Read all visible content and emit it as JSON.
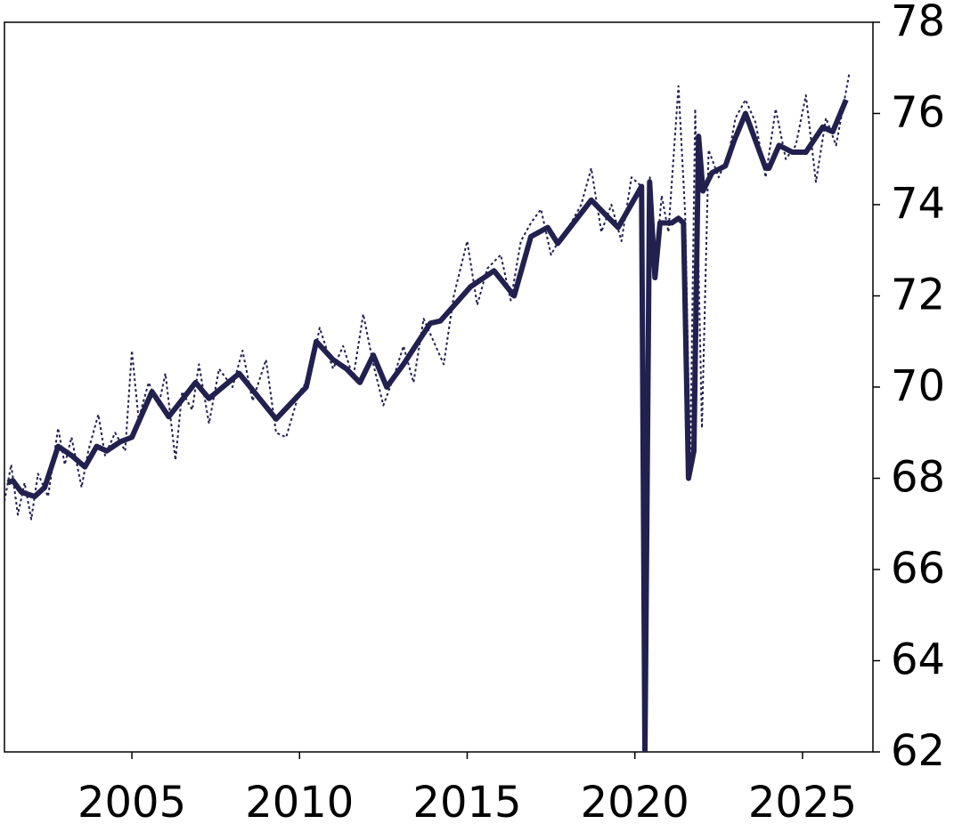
{
  "chart_data": {
    "type": "line",
    "xlim": [
      2001.2,
      2027.1
    ],
    "ylim": [
      62,
      78
    ],
    "xticks": [
      2005,
      2010,
      2015,
      2020,
      2025
    ],
    "yticks": [
      62,
      64,
      66,
      68,
      70,
      72,
      74,
      76,
      78
    ],
    "y_axis_side": "right",
    "series": [
      {
        "color": "#22204f",
        "linestyle": "dotted",
        "width": 2,
        "x": [
          2001.2,
          2001.4,
          2001.6,
          2001.8,
          2002.0,
          2002.2,
          2002.5,
          2002.8,
          2003.0,
          2003.2,
          2003.5,
          2003.7,
          2004.0,
          2004.2,
          2004.5,
          2004.8,
          2005.0,
          2005.2,
          2005.5,
          2005.8,
          2006.0,
          2006.3,
          2006.5,
          2006.8,
          2007.0,
          2007.3,
          2007.6,
          2008.0,
          2008.3,
          2008.6,
          2009.0,
          2009.3,
          2009.6,
          2010.0,
          2010.3,
          2010.6,
          2011.0,
          2011.3,
          2011.6,
          2011.9,
          2012.2,
          2012.5,
          2012.8,
          2013.1,
          2013.4,
          2013.7,
          2014.0,
          2014.3,
          2014.6,
          2015.0,
          2015.3,
          2015.6,
          2016.0,
          2016.3,
          2016.6,
          2016.9,
          2017.2,
          2017.5,
          2017.8,
          2018.1,
          2018.4,
          2018.7,
          2019.0,
          2019.3,
          2019.6,
          2019.9,
          2020.2,
          2020.3,
          2020.45,
          2020.6,
          2020.8,
          2021.0,
          2021.3,
          2021.5,
          2021.65,
          2021.8,
          2022.0,
          2022.2,
          2022.5,
          2022.8,
          2023.0,
          2023.3,
          2023.6,
          2023.9,
          2024.2,
          2024.5,
          2024.8,
          2025.1,
          2025.4,
          2025.7,
          2026.0,
          2026.4
        ],
        "values": [
          67.5,
          68.3,
          67.2,
          67.9,
          67.1,
          68.1,
          67.6,
          69.1,
          68.3,
          68.9,
          67.8,
          68.6,
          69.4,
          68.5,
          69.0,
          68.6,
          70.8,
          69.3,
          70.1,
          69.6,
          70.3,
          68.4,
          69.9,
          69.5,
          70.5,
          69.2,
          70.4,
          70.0,
          70.8,
          69.7,
          70.6,
          69.0,
          68.9,
          69.9,
          70.2,
          71.3,
          70.4,
          70.9,
          70.2,
          71.6,
          70.5,
          69.6,
          70.2,
          70.9,
          70.1,
          71.5,
          71.0,
          70.5,
          72.0,
          73.2,
          71.8,
          72.6,
          72.9,
          71.9,
          73.2,
          73.6,
          73.9,
          72.9,
          73.3,
          73.6,
          74.0,
          74.8,
          73.4,
          74.0,
          73.2,
          74.6,
          74.4,
          62.0,
          74.6,
          72.5,
          74.2,
          73.4,
          76.6,
          73.8,
          68.3,
          76.1,
          69.1,
          75.2,
          74.6,
          75.1,
          75.9,
          76.3,
          75.8,
          74.6,
          76.1,
          75.0,
          75.3,
          76.4,
          74.5,
          75.9,
          75.3,
          76.9
        ]
      },
      {
        "color": "#22204f",
        "linestyle": "solid",
        "width": 6,
        "x": [
          2001.3,
          2001.45,
          2001.7,
          2002.1,
          2002.4,
          2002.8,
          2003.2,
          2003.6,
          2003.95,
          2004.25,
          2004.65,
          2005.0,
          2005.6,
          2006.1,
          2006.9,
          2007.3,
          2008.2,
          2009.3,
          2010.2,
          2010.5,
          2011.0,
          2011.4,
          2011.8,
          2012.2,
          2012.6,
          2013.1,
          2013.9,
          2014.2,
          2015.1,
          2015.8,
          2016.4,
          2016.9,
          2017.4,
          2017.7,
          2018.7,
          2019.1,
          2019.5,
          2020.2,
          2020.3,
          2020.44,
          2020.6,
          2020.75,
          2021.1,
          2021.3,
          2021.45,
          2021.6,
          2021.76,
          2021.9,
          2022.03,
          2022.3,
          2022.7,
          2022.96,
          2023.3,
          2023.6,
          2023.9,
          2024.0,
          2024.3,
          2024.7,
          2025.1,
          2025.6,
          2025.9,
          2026.3
        ],
        "values": [
          67.9,
          67.95,
          67.7,
          67.6,
          67.8,
          68.7,
          68.5,
          68.25,
          68.7,
          68.6,
          68.8,
          68.9,
          69.9,
          69.35,
          70.1,
          69.75,
          70.3,
          69.3,
          70.0,
          71.0,
          70.6,
          70.4,
          70.1,
          70.7,
          70.0,
          70.5,
          71.4,
          71.45,
          72.2,
          72.55,
          72.0,
          73.3,
          73.5,
          73.15,
          74.1,
          73.8,
          73.5,
          74.4,
          62.0,
          74.5,
          72.4,
          73.6,
          73.6,
          73.7,
          73.6,
          68.0,
          68.6,
          75.5,
          74.3,
          74.7,
          74.85,
          75.4,
          76.0,
          75.4,
          74.8,
          74.8,
          75.3,
          75.15,
          75.15,
          75.7,
          75.6,
          76.3
        ]
      }
    ]
  }
}
